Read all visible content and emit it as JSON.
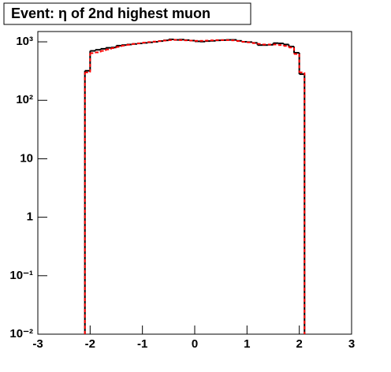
{
  "chart_data": {
    "type": "histogram",
    "title": "Event: η of 2nd highest muon",
    "bins": [
      -2.1,
      -2.0,
      -1.9,
      -1.8,
      -1.7,
      -1.6,
      -1.5,
      -1.4,
      -1.3,
      -1.2,
      -1.1,
      -1.0,
      -0.9,
      -0.8,
      -0.7,
      -0.6,
      -0.5,
      -0.4,
      -0.3,
      -0.2,
      -0.1,
      0.0,
      0.1,
      0.2,
      0.3,
      0.4,
      0.5,
      0.6,
      0.7,
      0.8,
      0.9,
      1.0,
      1.1,
      1.2,
      1.3,
      1.4,
      1.5,
      1.6,
      1.7,
      1.8,
      1.9,
      2.0,
      2.1
    ],
    "series": [
      {
        "color": "#000000",
        "line_style": "solid",
        "values": [
          320,
          700,
          730,
          760,
          790,
          800,
          860,
          880,
          900,
          920,
          940,
          960,
          980,
          1000,
          1030,
          1060,
          1100,
          1080,
          1090,
          1070,
          1050,
          1020,
          1010,
          1030,
          1040,
          1060,
          1070,
          1080,
          1080,
          1040,
          1000,
          990,
          960,
          880,
          880,
          890,
          950,
          940,
          900,
          830,
          650,
          280
        ]
      },
      {
        "color": "#ff0000",
        "line_style": "dashed",
        "values": [
          300,
          640,
          660,
          700,
          740,
          780,
          820,
          860,
          890,
          920,
          940,
          970,
          990,
          1010,
          1030,
          1050,
          1070,
          1080,
          1070,
          1060,
          1050,
          1040,
          1040,
          1050,
          1060,
          1070,
          1070,
          1070,
          1060,
          1030,
          1000,
          980,
          950,
          920,
          900,
          900,
          900,
          880,
          850,
          800,
          620,
          300
        ]
      }
    ],
    "xlim": [
      -3,
      3
    ],
    "xticks": [
      -3,
      -2,
      -1,
      0,
      1,
      2,
      3
    ],
    "ylim": [
      0.01,
      1500
    ],
    "ylog": true,
    "yticks": [
      {
        "value": 0.01,
        "label": "10⁻²"
      },
      {
        "value": 0.1,
        "label": "10⁻¹"
      },
      1,
      10,
      {
        "value": 100,
        "label": "10²"
      },
      {
        "value": 1000,
        "label": "10³"
      }
    ]
  }
}
